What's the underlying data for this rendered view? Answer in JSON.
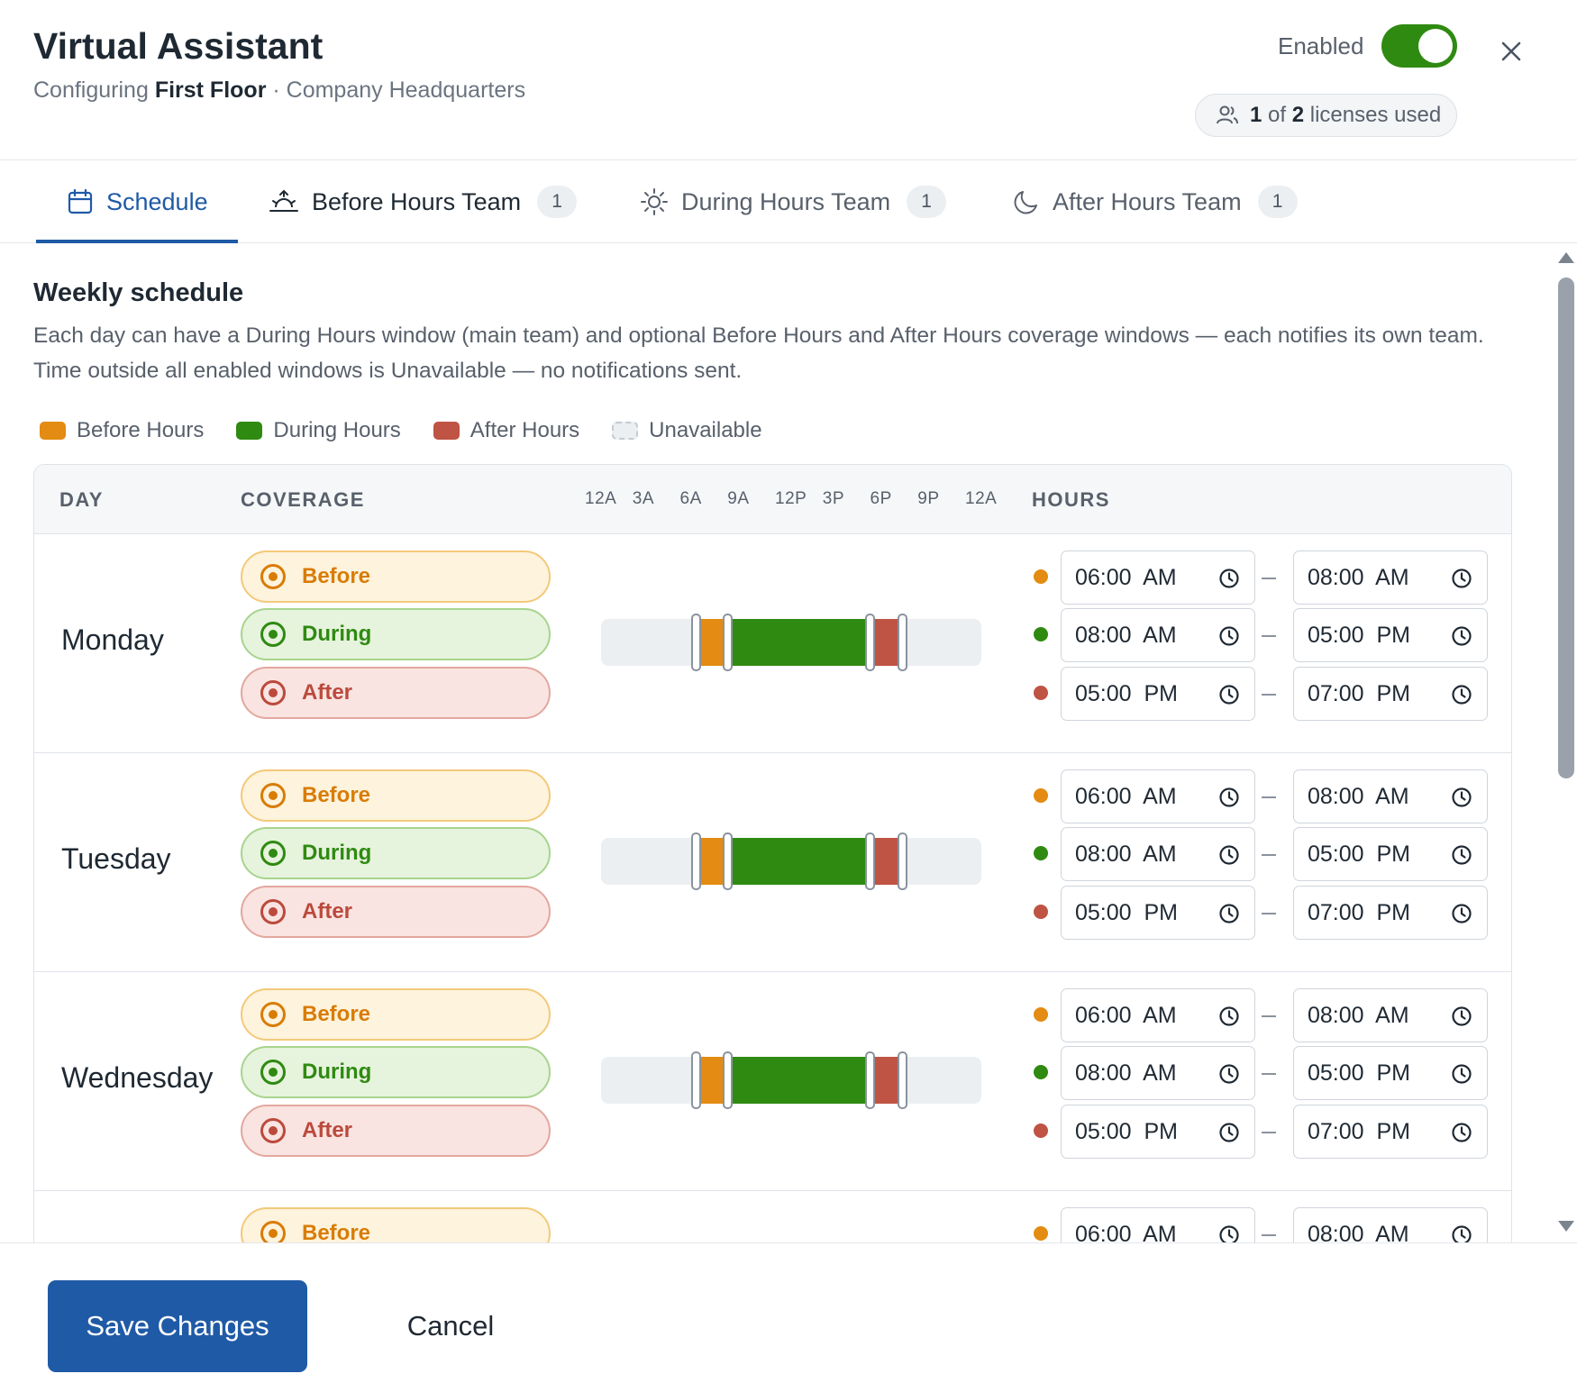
{
  "header": {
    "title": "Virtual Assistant",
    "subtitle_prefix": "Configuring",
    "location": "First Floor",
    "subtitle_suffix": "· Company Headquarters",
    "enabled_label": "Enabled",
    "enabled": true,
    "close_icon": "close-icon",
    "licenses": {
      "used": "1",
      "of": "of",
      "total": "2",
      "suffix": "licenses used",
      "icon": "users-icon"
    }
  },
  "tabs": [
    {
      "label": "Schedule",
      "icon": "calendar-icon",
      "active": true
    },
    {
      "label": "Before Hours Team",
      "icon": "sunrise-icon",
      "badge": "1"
    },
    {
      "label": "During Hours Team",
      "icon": "sun-icon",
      "badge": "1"
    },
    {
      "label": "After Hours Team",
      "icon": "moon-icon",
      "badge": "1"
    }
  ],
  "schedule": {
    "title": "Weekly schedule",
    "description": "Each day can have a During Hours window (main team) and optional Before Hours and After Hours coverage windows — each notifies its own team. Time outside all enabled windows is Unavailable — no notifications sent.",
    "legend": [
      {
        "label": "Before Hours",
        "color": "#e38b12"
      },
      {
        "label": "During Hours",
        "color": "#2f8a11"
      },
      {
        "label": "After Hours",
        "color": "#bf5344"
      },
      {
        "label": "Unavailable",
        "color": "#eceff2"
      }
    ],
    "columns": {
      "day": "DAY",
      "coverage": "COVERAGE",
      "hours": "HOURS"
    },
    "ticks": [
      "12A",
      "3A",
      "6A",
      "9A",
      "12P",
      "3P",
      "6P",
      "9P",
      "12A"
    ],
    "coverage_labels": {
      "before": "Before",
      "during": "During",
      "after": "After"
    },
    "days": [
      {
        "name": "Monday",
        "windows": [
          {
            "kind": "before",
            "start": "06:00  AM",
            "end": "08:00  AM",
            "start_hour": 6,
            "end_hour": 8
          },
          {
            "kind": "during",
            "start": "08:00  AM",
            "end": "05:00  PM",
            "start_hour": 8,
            "end_hour": 17
          },
          {
            "kind": "after",
            "start": "05:00  PM",
            "end": "07:00  PM",
            "start_hour": 17,
            "end_hour": 19
          }
        ]
      },
      {
        "name": "Tuesday",
        "windows": [
          {
            "kind": "before",
            "start": "06:00  AM",
            "end": "08:00  AM",
            "start_hour": 6,
            "end_hour": 8
          },
          {
            "kind": "during",
            "start": "08:00  AM",
            "end": "05:00  PM",
            "start_hour": 8,
            "end_hour": 17
          },
          {
            "kind": "after",
            "start": "05:00  PM",
            "end": "07:00  PM",
            "start_hour": 17,
            "end_hour": 19
          }
        ]
      },
      {
        "name": "Wednesday",
        "windows": [
          {
            "kind": "before",
            "start": "06:00  AM",
            "end": "08:00  AM",
            "start_hour": 6,
            "end_hour": 8
          },
          {
            "kind": "during",
            "start": "08:00  AM",
            "end": "05:00  PM",
            "start_hour": 8,
            "end_hour": 17
          },
          {
            "kind": "after",
            "start": "05:00  PM",
            "end": "07:00  PM",
            "start_hour": 17,
            "end_hour": 19
          }
        ]
      },
      {
        "name": "",
        "windows": [
          {
            "kind": "before",
            "start": "06:00  AM",
            "end": "08:00  AM",
            "start_hour": 6,
            "end_hour": 8
          }
        ]
      }
    ]
  },
  "footer": {
    "save_label": "Save Changes",
    "cancel_label": "Cancel"
  }
}
